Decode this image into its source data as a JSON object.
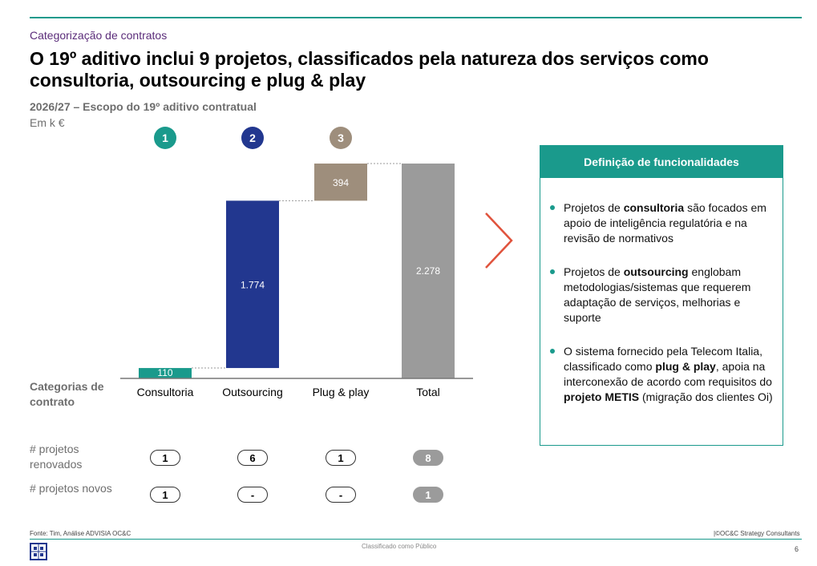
{
  "header": {
    "kicker": "Categorização de contratos",
    "title": "O 19º aditivo inclui 9 projetos, classificados pela natureza dos serviços como consultoria, outsourcing e plug & play",
    "subtitle": "2026/27 – Escopo do 19º aditivo contratual",
    "unit": "Em k €"
  },
  "chart_data": {
    "type": "bar",
    "subtype": "waterfall",
    "categories": [
      "Consultoria",
      "Outsourcing",
      "Plug & play",
      "Total"
    ],
    "values": [
      110,
      1774,
      394,
      2278
    ],
    "value_labels": [
      "110",
      "1.774",
      "394",
      "2.278"
    ],
    "badges": [
      "1",
      "2",
      "3"
    ],
    "xlabel": "Categorias de contrato",
    "ylabel": "",
    "ylim": [
      0,
      2278
    ],
    "grid": false,
    "colors": [
      "#1a9a8c",
      "#22378f",
      "#9e8e7c",
      "#9b9b9b"
    ]
  },
  "rows": {
    "category_label": "Categorias de contrato",
    "renewed": {
      "label": "# projetos renovados",
      "values": [
        "1",
        "6",
        "1",
        "8"
      ]
    },
    "new": {
      "label": "# projetos novos",
      "values": [
        "1",
        "-",
        "-",
        "1"
      ]
    }
  },
  "definitions": {
    "title": "Definição de funcionalidades",
    "bullets": [
      {
        "parts": [
          {
            "text": "Projetos de ",
            "bold": false
          },
          {
            "text": "consultoria",
            "bold": true
          },
          {
            "text": " são focados em apoio de inteligência regulatória e na revisão de normativos",
            "bold": false
          }
        ]
      },
      {
        "parts": [
          {
            "text": "Projetos de ",
            "bold": false
          },
          {
            "text": "outsourcing",
            "bold": true
          },
          {
            "text": " englobam metodologias/sistemas que requerem adaptação de serviços, melhorias e suporte",
            "bold": false
          }
        ]
      },
      {
        "parts": [
          {
            "text": "O sistema fornecido pela Telecom Italia, classificado como ",
            "bold": false
          },
          {
            "text": "plug & play",
            "bold": true
          },
          {
            "text": ", apoia na interconexão de acordo com requisitos do ",
            "bold": false
          },
          {
            "text": "projeto METIS",
            "bold": true
          },
          {
            "text": " (migração dos clientes Oi)",
            "bold": false
          }
        ]
      }
    ]
  },
  "footer": {
    "source": "Fonte: Tim, Análise ADVISIA OC&C",
    "copyright": "|©OC&C Strategy Consultants",
    "classification": "Classificado como Público",
    "page_number": "6"
  },
  "colors": {
    "accent": "#1a9a8c",
    "arrow": "#e0533d",
    "kicker": "#5b2d7a"
  },
  "icons": {
    "logo": "grid-logo-icon",
    "arrow": "chevron-right-icon"
  }
}
